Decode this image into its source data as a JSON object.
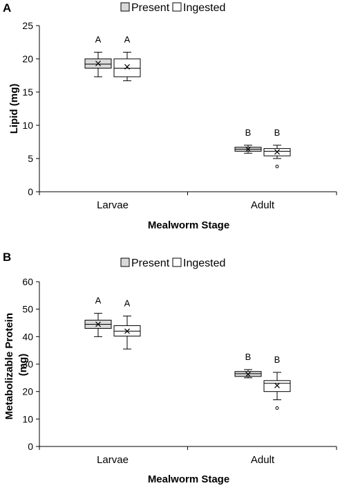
{
  "chart_data": [
    {
      "type": "box",
      "panel_label": "A",
      "legend": [
        "Present",
        "Ingested"
      ],
      "categories": [
        "Larvae",
        "Adult"
      ],
      "xlabel": "Mealworm Stage",
      "ylabel": "Lipid (mg)",
      "ylim": [
        0,
        25
      ],
      "yticks": [
        "0",
        "5",
        "10",
        "15",
        "20",
        "25"
      ],
      "series": [
        {
          "name": "Present",
          "fill": "#d9d9d9",
          "boxes": [
            {
              "min": 17.3,
              "q1": 18.6,
              "median": 19.2,
              "q3": 20.0,
              "max": 21.0,
              "mean": 19.3,
              "outliers": [],
              "letter": "A"
            },
            {
              "min": 5.8,
              "q1": 6.1,
              "median": 6.4,
              "q3": 6.7,
              "max": 7.0,
              "mean": 6.4,
              "outliers": [],
              "letter": "B"
            }
          ]
        },
        {
          "name": "Ingested",
          "fill": "#ffffff",
          "boxes": [
            {
              "min": 16.7,
              "q1": 17.3,
              "median": 18.6,
              "q3": 20.0,
              "max": 21.0,
              "mean": 18.8,
              "outliers": [],
              "letter": "A"
            },
            {
              "min": 5.0,
              "q1": 5.4,
              "median": 6.1,
              "q3": 6.5,
              "max": 7.0,
              "mean": 6.0,
              "outliers": [
                3.8
              ],
              "letter": "B"
            }
          ]
        }
      ]
    },
    {
      "type": "box",
      "panel_label": "B",
      "legend": [
        "Present",
        "Ingested"
      ],
      "categories": [
        "Larvae",
        "Adult"
      ],
      "xlabel": "Mealworm Stage",
      "ylabel": "Metabolizable Protein (mg)",
      "ylim": [
        0,
        60
      ],
      "yticks": [
        "0",
        "10",
        "20",
        "30",
        "40",
        "50",
        "60"
      ],
      "series": [
        {
          "name": "Present",
          "fill": "#d9d9d9",
          "boxes": [
            {
              "min": 40.0,
              "q1": 43.0,
              "median": 44.5,
              "q3": 46.0,
              "max": 48.5,
              "mean": 44.5,
              "outliers": [],
              "letter": "A"
            },
            {
              "min": 25.0,
              "q1": 25.5,
              "median": 26.5,
              "q3": 27.3,
              "max": 28.0,
              "mean": 26.3,
              "outliers": [],
              "letter": "B"
            }
          ]
        },
        {
          "name": "Ingested",
          "fill": "#ffffff",
          "boxes": [
            {
              "min": 35.5,
              "q1": 40.2,
              "median": 42.0,
              "q3": 44.0,
              "max": 47.5,
              "mean": 42.0,
              "outliers": [],
              "letter": "A"
            },
            {
              "min": 17.0,
              "q1": 20.0,
              "median": 23.0,
              "q3": 24.0,
              "max": 27.0,
              "mean": 22.2,
              "outliers": [
                14.0
              ],
              "letter": "B"
            }
          ]
        }
      ]
    }
  ]
}
